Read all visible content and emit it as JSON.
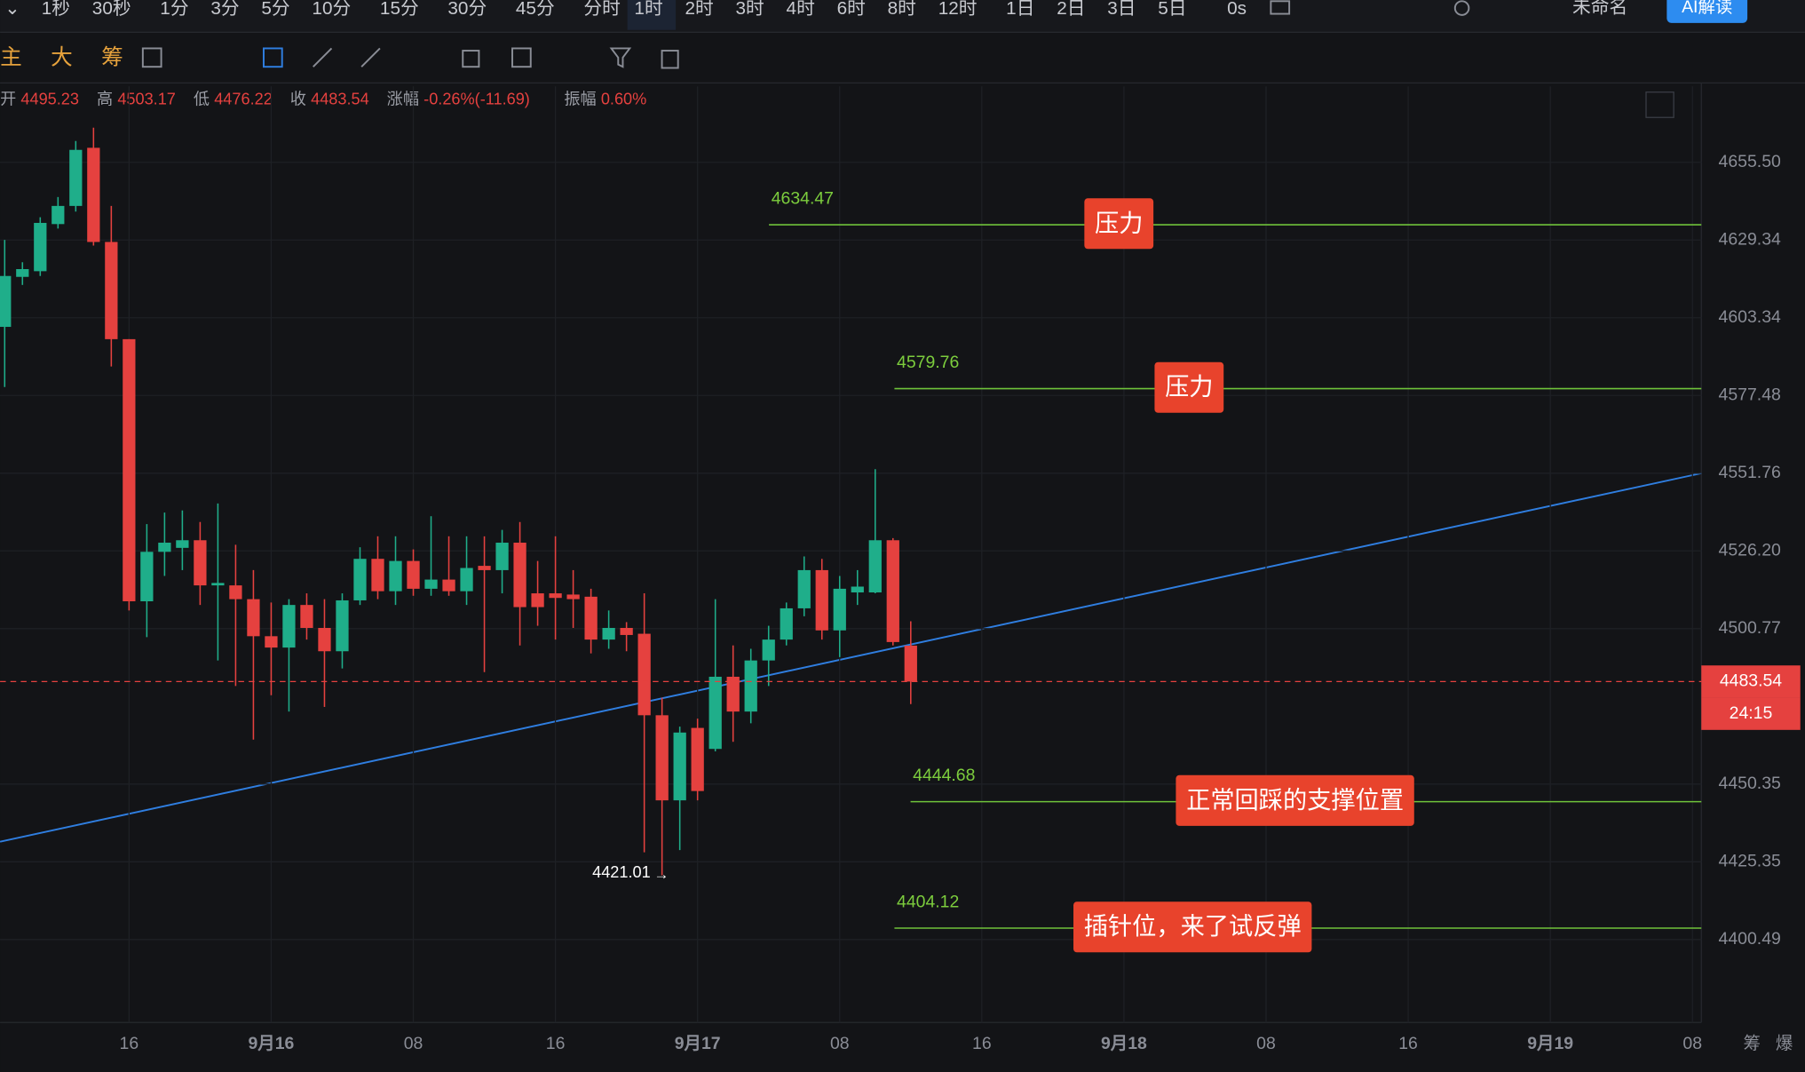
{
  "toolbar": {
    "intervals": [
      "1秒",
      "30秒",
      "1分",
      "3分",
      "5分",
      "10分",
      "15分",
      "30分",
      "45分",
      "分时",
      "1时",
      "2时",
      "3时",
      "4时",
      "6时",
      "8时",
      "12时",
      "1日",
      "2日",
      "3日",
      "5日"
    ],
    "active": 10,
    "timer": "0s",
    "layout_name": "未命名",
    "ai_button": "AI解读",
    "tools": [
      "主",
      "大",
      "筹"
    ]
  },
  "info": [
    {
      "label": "开",
      "value": "4495.23"
    },
    {
      "label": "高",
      "value": "4503.17"
    },
    {
      "label": "低",
      "value": "4476.22"
    },
    {
      "label": "收",
      "value": "4483.54"
    },
    {
      "label": "涨幅",
      "value": "-0.26%(-11.69)"
    },
    {
      "label": "振幅",
      "value": "0.60%"
    }
  ],
  "chart_data": {
    "type": "candlestick",
    "log_scale": true,
    "grid": true,
    "up_color": "#1fae8a",
    "down_color": "#e5413f",
    "open": [
      4600.3,
      4617.0,
      4618.9,
      4634.7,
      4640.8,
      4660.4,
      4628.7,
      4596.2,
      4509.7,
      4525.9,
      4527.2,
      4529.7,
      4514.9,
      4514.9,
      4510.4,
      4498.3,
      4494.6,
      4508.5,
      4501.0,
      4493.4,
      4510.0,
      4523.6,
      4513.0,
      4522.9,
      4513.8,
      4516.8,
      4513.0,
      4521.3,
      4519.9,
      4528.9,
      4512.3,
      4512.3,
      4511.9,
      4511.2,
      4497.2,
      4501.0,
      4499.1,
      4472.6,
      4445.1,
      4468.5,
      4461.7,
      4485.1,
      4473.8,
      4490.4,
      4497.2,
      4507.4,
      4519.9,
      4500.2,
      4512.6,
      4512.6,
      4529.7,
      4495.23
    ],
    "high": [
      4629.4,
      4621.9,
      4637.0,
      4643.8,
      4662.7,
      4667.2,
      4640.8,
      4596.2,
      4535.0,
      4538.8,
      4539.5,
      4535.7,
      4541.8,
      4528.2,
      4519.9,
      4509.3,
      4510.4,
      4512.3,
      4510.4,
      4512.3,
      4527.4,
      4531.0,
      4531.0,
      4526.7,
      4537.6,
      4531.0,
      4531.0,
      4531.0,
      4533.1,
      4535.7,
      4522.9,
      4531.0,
      4519.9,
      4513.8,
      4506.7,
      4502.9,
      4512.3,
      4478.3,
      4468.9,
      4471.5,
      4510.4,
      4495.3,
      4494.2,
      4501.7,
      4509.3,
      4524.4,
      4523.6,
      4518.0,
      4519.9,
      4553.1,
      4530.4,
      4503.17
    ],
    "low": [
      4580.3,
      4614.3,
      4617.3,
      4633.2,
      4638.9,
      4627.5,
      4587.1,
      4506.7,
      4498.0,
      4518.0,
      4519.9,
      4508.5,
      4490.4,
      4482.1,
      4464.7,
      4479.1,
      4473.8,
      4497.2,
      4475.3,
      4487.8,
      4508.5,
      4510.4,
      4508.5,
      4511.5,
      4511.5,
      4511.5,
      4508.5,
      4486.6,
      4512.3,
      4495.3,
      4501.7,
      4497.2,
      4501.0,
      4492.7,
      4494.2,
      4493.4,
      4428.4,
      4421.01,
      4429.1,
      4445.1,
      4460.9,
      4464.0,
      4470.0,
      4482.1,
      4495.3,
      4504.8,
      4497.2,
      4491.5,
      4508.5,
      4512.3,
      4495.3,
      4476.22
    ],
    "close": [
      4617.3,
      4619.6,
      4635.1,
      4640.8,
      4659.7,
      4628.7,
      4596.2,
      4509.7,
      4525.9,
      4528.9,
      4529.7,
      4514.9,
      4515.7,
      4510.4,
      4498.3,
      4494.6,
      4508.5,
      4501.0,
      4493.4,
      4510.0,
      4523.6,
      4513.0,
      4522.9,
      4513.8,
      4516.8,
      4513.0,
      4520.6,
      4519.9,
      4528.9,
      4507.8,
      4507.8,
      4510.8,
      4510.4,
      4497.2,
      4501.0,
      4498.7,
      4472.6,
      4445.1,
      4467.0,
      4448.1,
      4485.1,
      4473.8,
      4490.4,
      4497.2,
      4507.4,
      4519.9,
      4500.2,
      4513.8,
      4514.5,
      4529.7,
      4496.4,
      4483.54
    ],
    "ylim": [
      4374.1,
      4681.2
    ],
    "yticks": [
      {
        "value": 4655.5,
        "label": "4655.50"
      },
      4629.34,
      4603.34,
      4577.48,
      4551.76,
      {
        "value": 4526.2,
        "label": "4526.20"
      },
      4500.77,
      4450.35,
      4425.35,
      4400.49
    ],
    "xlim": [
      -0.26,
      95.5
    ],
    "xticks": [
      {
        "value": 7,
        "label": "16"
      },
      {
        "value": 15,
        "label": "9月16"
      },
      {
        "value": 23,
        "label": "08"
      },
      {
        "value": 31,
        "label": "16"
      },
      {
        "value": 39,
        "label": "9月17"
      },
      {
        "value": 47,
        "label": "08"
      },
      {
        "value": 55,
        "label": "16"
      },
      {
        "value": 63,
        "label": "9月18"
      },
      {
        "value": 71,
        "label": "08"
      },
      {
        "value": 79,
        "label": "16"
      },
      {
        "value": 87,
        "label": "9月19"
      },
      {
        "value": 95,
        "label": "08"
      }
    ],
    "levels": [
      {
        "value": 4634.47,
        "label": "压力"
      },
      {
        "value": 4579.76,
        "label": "压力"
      },
      {
        "value": 4444.68,
        "label": "正常回踩的支撑位置"
      },
      {
        "value": 4404.12,
        "label": "插针位，来了试反弹"
      }
    ],
    "countdown": "24:15",
    "corner_labels": [
      "筹",
      "爆"
    ]
  }
}
